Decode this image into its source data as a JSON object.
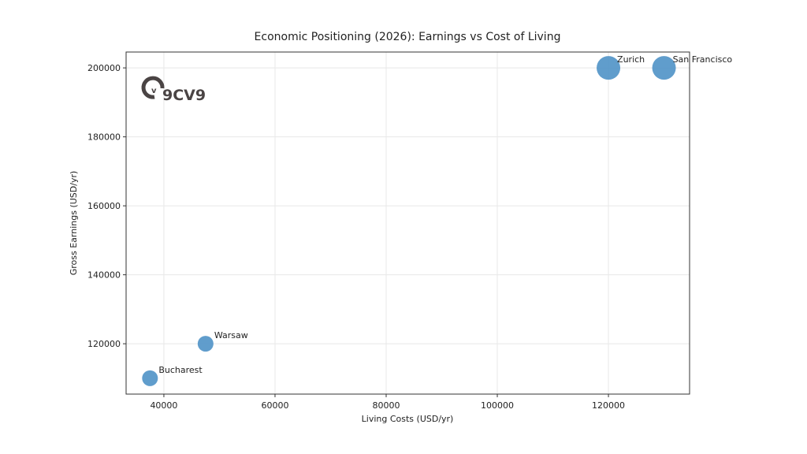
{
  "chart_data": {
    "type": "scatter",
    "title": "Economic Positioning (2026): Earnings vs Cost of Living",
    "xlabel": "Living Costs (USD/yr)",
    "ylabel": "Gross Earnings (USD/yr)",
    "xlim": [
      33200,
      134600
    ],
    "ylim": [
      105400,
      204600
    ],
    "xticks": [
      40000,
      60000,
      80000,
      100000,
      120000
    ],
    "yticks": [
      120000,
      140000,
      160000,
      180000,
      200000
    ],
    "grid": true,
    "color": "#4f92c6",
    "points": [
      {
        "label": "Bucharest",
        "x": 37500,
        "y": 110000
      },
      {
        "label": "Warsaw",
        "x": 47500,
        "y": 120000
      },
      {
        "label": "Zurich",
        "x": 120000,
        "y": 200000
      },
      {
        "label": "San Francisco",
        "x": 130000,
        "y": 200000
      }
    ]
  },
  "watermark": "9CV9"
}
